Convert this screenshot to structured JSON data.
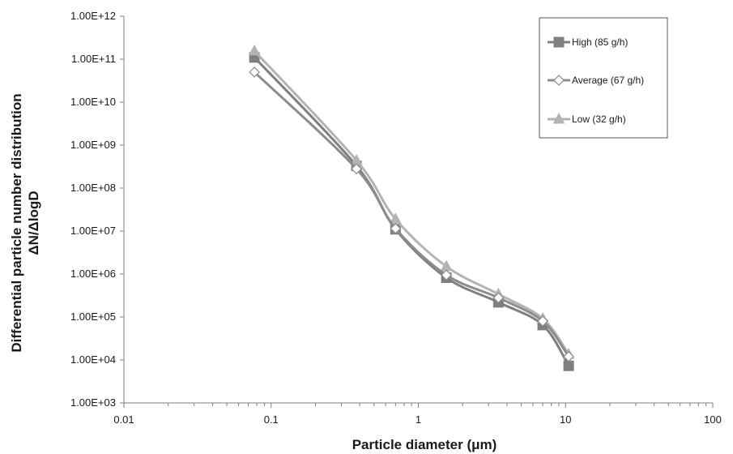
{
  "chart_data": {
    "type": "line",
    "xscale": "log",
    "yscale": "log",
    "xlim": [
      0.01,
      100
    ],
    "ylim": [
      1000,
      1000000000000
    ],
    "xlabel": "Particle diameter (μm)",
    "ylabel_lines": [
      "Differential particle number distribution",
      "ΔN/ΔlogD"
    ],
    "x_tick_values": [
      0.01,
      0.1,
      1,
      10,
      100
    ],
    "x_tick_labels": [
      "0.01",
      "0.1",
      "1",
      "10",
      "100"
    ],
    "y_tick_values": [
      1000,
      10000,
      100000,
      1000000,
      10000000,
      100000000,
      1000000000,
      10000000000,
      100000000000,
      1000000000000
    ],
    "y_tick_labels": [
      "1.00E+03",
      "1.00E+04",
      "1.00E+05",
      "1.00E+06",
      "1.00E+07",
      "1.00E+08",
      "1.00E+09",
      "1.00E+10",
      "1.00E+11",
      "1.00E+12"
    ],
    "grid": false,
    "legend_position": "top-right",
    "series": [
      {
        "name": "High (85 g/h)",
        "color": "#7f7f7f",
        "marker": "square-filled",
        "x": [
          0.077,
          0.38,
          0.7,
          1.55,
          3.5,
          7.0,
          10.5
        ],
        "y": [
          110000000000,
          330000000,
          11000000,
          820000,
          220000,
          65000,
          7300
        ]
      },
      {
        "name": "Average (67 g/h)",
        "color": "#8c8c8c",
        "marker": "diamond-open",
        "x": [
          0.077,
          0.38,
          0.7,
          1.55,
          3.5,
          7.0,
          10.5
        ],
        "y": [
          50000000000,
          280000000,
          11500000,
          950000,
          280000,
          80000,
          12000
        ]
      },
      {
        "name": "Low (32 g/h)",
        "color": "#b3b3b3",
        "marker": "triangle-filled",
        "x": [
          0.077,
          0.38,
          0.7,
          1.55,
          3.5,
          7.0,
          10.5
        ],
        "y": [
          155000000000,
          440000000,
          19000000,
          1500000,
          340000,
          92000,
          13500
        ]
      }
    ]
  }
}
